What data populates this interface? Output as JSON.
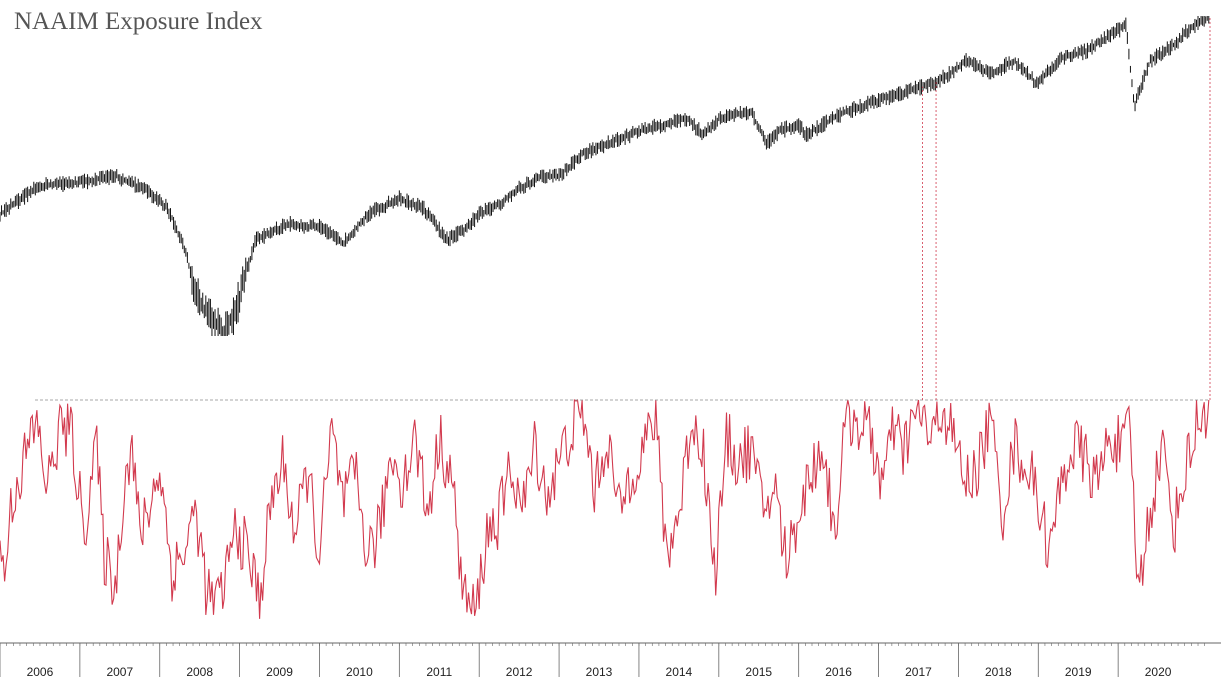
{
  "title": "NAAIM Exposure Index",
  "colors": {
    "price": "#111111",
    "exposure": "#d23a4e",
    "reference": "#8a8a8a",
    "axis": "#666666"
  },
  "chart_data": [
    {
      "type": "line",
      "series": [
        {
          "x": [
            2006.0,
            2006.5,
            2007.0,
            2007.45,
            2007.8,
            2008.1,
            2008.3,
            2008.5,
            2008.8,
            2008.95,
            2009.2,
            2009.6,
            2010.0,
            2010.3,
            2010.6,
            2011.0,
            2011.3,
            2011.6,
            2011.8,
            2012.0,
            2012.3,
            2012.5,
            2012.8,
            2013.0,
            2013.3,
            2013.6,
            2014.0,
            2014.3,
            2014.6,
            2014.8,
            2015.0,
            2015.4,
            2015.6,
            2015.75,
            2016.0,
            2016.1,
            2016.5,
            2016.9,
            2017.3,
            2017.7,
            2018.0,
            2018.1,
            2018.4,
            2018.7,
            2018.98,
            2019.3,
            2019.6,
            2019.9,
            2020.1,
            2020.2,
            2020.4,
            2020.7,
            2020.85,
            2021.0,
            2021.15
          ]
        }
      ]
    },
    {
      "type": "line",
      "x_ticks": [
        "2006",
        "2007",
        "2008",
        "2009",
        "2010",
        "2011",
        "2012",
        "2013",
        "2014",
        "2015",
        "2016",
        "2017",
        "2018",
        "2019",
        "2020"
      ],
      "series": [
        {
          "x": [
            2006.0,
            2006.05,
            2006.15,
            2006.3,
            2006.45,
            2006.6,
            2006.75,
            2006.9,
            2007.05,
            2007.2,
            2007.3,
            2007.45,
            2007.55,
            2007.65,
            2007.75,
            2007.9,
            2008.0,
            2008.15,
            2008.3,
            2008.45,
            2008.6,
            2008.75,
            2008.85,
            2008.95,
            2009.1,
            2009.25,
            2009.4,
            2009.55,
            2009.7,
            2009.85,
            2010.0,
            2010.15,
            2010.3,
            2010.45,
            2010.6,
            2010.75,
            2010.9,
            2011.05,
            2011.2,
            2011.35,
            2011.5,
            2011.65,
            2011.8,
            2011.95,
            2012.1,
            2012.25,
            2012.4,
            2012.55,
            2012.7,
            2012.85,
            2013.0,
            2013.15,
            2013.3,
            2013.45,
            2013.6,
            2013.75,
            2013.9,
            2014.05,
            2014.2,
            2014.35,
            2014.5,
            2014.65,
            2014.8,
            2014.95,
            2015.1,
            2015.25,
            2015.4,
            2015.55,
            2015.7,
            2015.85,
            2016.0,
            2016.15,
            2016.3,
            2016.45,
            2016.6,
            2016.75,
            2016.9,
            2017.05,
            2017.2,
            2017.3,
            2017.4,
            2017.55,
            2017.65,
            2017.8,
            2017.95,
            2018.1,
            2018.25,
            2018.4,
            2018.55,
            2018.7,
            2018.85,
            2018.98,
            2019.15,
            2019.3,
            2019.45,
            2019.6,
            2019.75,
            2019.9,
            2020.05,
            2020.15,
            2020.25,
            2020.4,
            2020.55,
            2020.7,
            2020.85,
            2021.0,
            2021.15
          ],
          "y": [
            35,
            20,
            55,
            72,
            90,
            60,
            88,
            84,
            40,
            82,
            30,
            15,
            62,
            80,
            38,
            55,
            70,
            22,
            30,
            50,
            10,
            8,
            25,
            42,
            30,
            10,
            55,
            72,
            38,
            68,
            30,
            85,
            52,
            66,
            30,
            40,
            76,
            62,
            84,
            48,
            82,
            66,
            12,
            2,
            40,
            46,
            70,
            50,
            80,
            56,
            72,
            86,
            94,
            58,
            84,
            48,
            68,
            78,
            92,
            30,
            48,
            90,
            80,
            20,
            82,
            72,
            78,
            50,
            60,
            26,
            50,
            66,
            80,
            40,
            92,
            90,
            84,
            62,
            88,
            75,
            88,
            96,
            78,
            98,
            80,
            62,
            70,
            92,
            48,
            80,
            70,
            58,
            30,
            66,
            80,
            72,
            62,
            86,
            76,
            88,
            12,
            50,
            80,
            42,
            70,
            90,
            100
          ]
        }
      ]
    }
  ]
}
